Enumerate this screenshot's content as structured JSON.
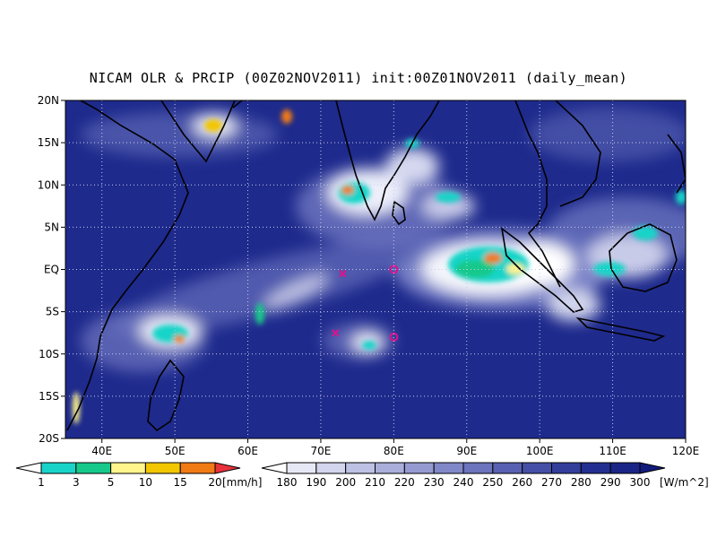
{
  "title": "NICAM OLR & PRCIP (00Z02NOV2011) init:00Z01NOV2011 (daily_mean)",
  "map": {
    "lon_range": [
      35,
      120
    ],
    "lat_range": [
      -20,
      20
    ],
    "lat_ticks": [
      {
        "value": 20,
        "label": "20N"
      },
      {
        "value": 15,
        "label": "15N"
      },
      {
        "value": 10,
        "label": "10N"
      },
      {
        "value": 5,
        "label": "5N"
      },
      {
        "value": 0,
        "label": "EQ"
      },
      {
        "value": -5,
        "label": "5S"
      },
      {
        "value": -10,
        "label": "10S"
      },
      {
        "value": -15,
        "label": "15S"
      },
      {
        "value": -20,
        "label": "20S"
      }
    ],
    "lon_ticks": [
      {
        "value": 40,
        "label": "40E"
      },
      {
        "value": 50,
        "label": "50E"
      },
      {
        "value": 60,
        "label": "60E"
      },
      {
        "value": 70,
        "label": "70E"
      },
      {
        "value": 80,
        "label": "80E"
      },
      {
        "value": 90,
        "label": "90E"
      },
      {
        "value": 100,
        "label": "100E"
      },
      {
        "value": 110,
        "label": "110E"
      },
      {
        "value": 120,
        "label": "120E"
      }
    ],
    "grid": "dotted",
    "background_color": "#1e2a8c",
    "markers": [
      {
        "type": "x",
        "lon": 73,
        "lat": -0.5,
        "color": "#e0108c"
      },
      {
        "type": "x",
        "lon": 72,
        "lat": -7.5,
        "color": "#e0108c"
      },
      {
        "type": "circle",
        "lon": 80,
        "lat": 0,
        "color": "#e0108c"
      },
      {
        "type": "circle",
        "lon": 80,
        "lat": -8,
        "color": "#e0108c"
      }
    ]
  },
  "precip_colorbar": {
    "unit": "[mm/h]",
    "labels": [
      "1",
      "3",
      "5",
      "10",
      "15",
      "20"
    ],
    "colors": [
      "#ffffff",
      "#18d4c8",
      "#16c98a",
      "#fff58a",
      "#f2c600",
      "#f07a14",
      "#e8323c"
    ]
  },
  "olr_colorbar": {
    "unit": "[W/m^2]",
    "labels": [
      "180",
      "190",
      "200",
      "210",
      "220",
      "230",
      "240",
      "250",
      "260",
      "270",
      "280",
      "290",
      "300"
    ],
    "colors": [
      "#ffffff",
      "#e6e8f5",
      "#d2d5ec",
      "#bdc1e3",
      "#a9aeda",
      "#959bd1",
      "#8188c8",
      "#6c74bd",
      "#5861b1",
      "#454fa6",
      "#333e9b",
      "#232f90",
      "#1a2486",
      "#121b7c"
    ]
  }
}
